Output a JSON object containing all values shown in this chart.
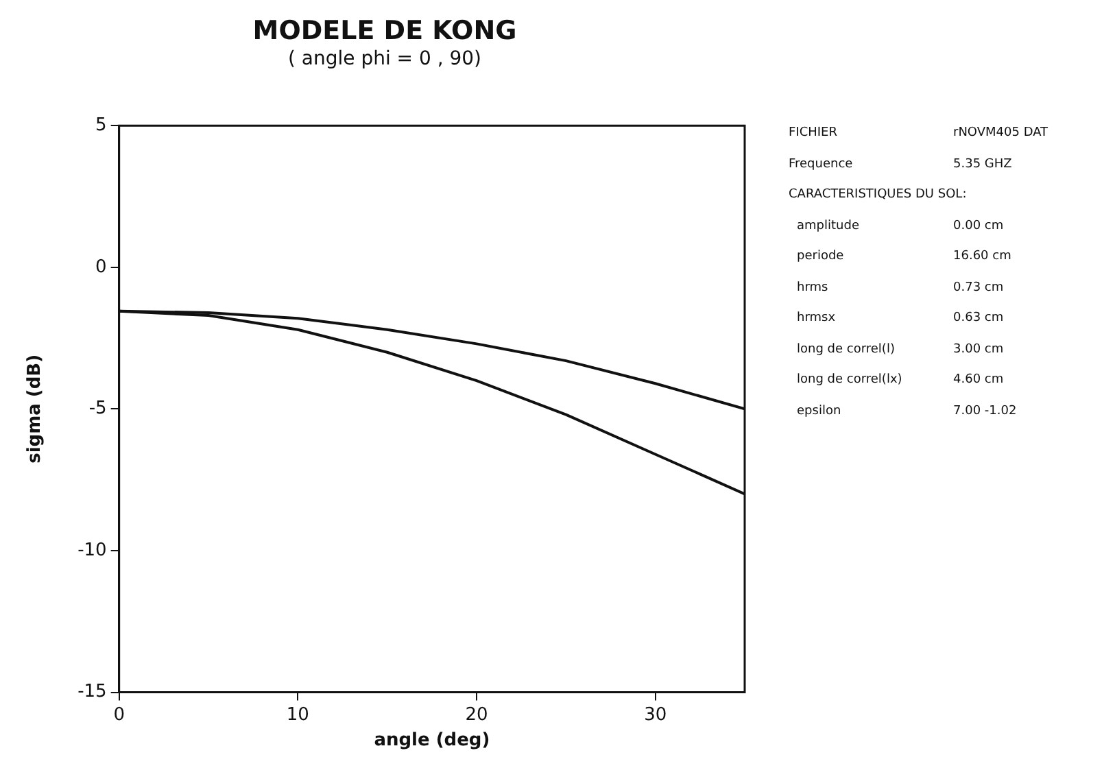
{
  "chart_data": {
    "type": "line",
    "title": "MODELE DE KONG",
    "subtitle": "( angle phi = 0 , 90)",
    "xlabel": "angle (deg)",
    "ylabel": "sigma (dB)",
    "x": [
      0,
      5,
      10,
      15,
      20,
      25,
      30,
      35
    ],
    "series": [
      {
        "color": "#111111",
        "values": [
          -1.55,
          -1.6,
          -1.8,
          -2.2,
          -2.7,
          -3.3,
          -4.1,
          -5.0
        ]
      },
      {
        "color": "#111111",
        "values": [
          -1.55,
          -1.7,
          -2.2,
          -3.0,
          -4.0,
          -5.2,
          -6.6,
          -8.0
        ]
      }
    ],
    "xlim": [
      0,
      35
    ],
    "xticks": [
      0,
      10,
      20,
      30
    ],
    "ylim": [
      -15,
      5
    ],
    "yticks": [
      -15,
      -10,
      -5,
      0,
      5
    ],
    "grid": false,
    "legend": false,
    "marker": "none",
    "line_style": "solid",
    "annotations": [
      "FICHIER  rNOVM405 DAT",
      "Frequence  5.35 GHZ",
      "CARACTERISTIQUES DU SOL:",
      "amplitude  0.00 cm",
      "periode  16.60 cm",
      "hrms  0.73 cm",
      "hrmsx  0.63 cm",
      "long de correl(l)  3.00 cm",
      "long de correl(lx)  4.60 cm",
      "epsilon  7.00 -1.02"
    ]
  }
}
